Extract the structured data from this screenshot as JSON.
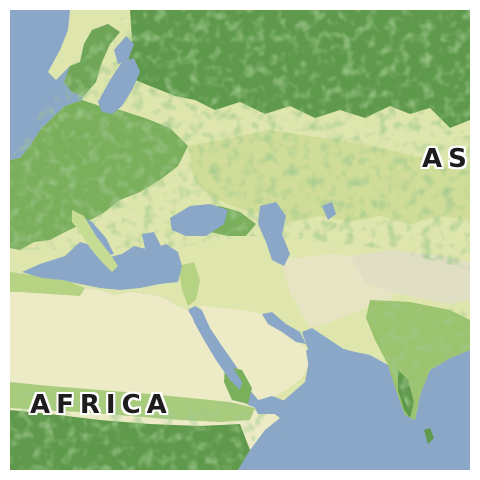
{
  "map": {
    "labels": {
      "africa": "AFRICA",
      "asia": "AS"
    },
    "colors": {
      "water": "#8aa7c7",
      "land_arid": "#ecebc6",
      "land_light": "#d7e3a3",
      "vegetation": "#8cbb63",
      "forest": "#5f9a4c",
      "dense_forest": "#4d8a41",
      "mountain": "#e1dfc3"
    }
  }
}
